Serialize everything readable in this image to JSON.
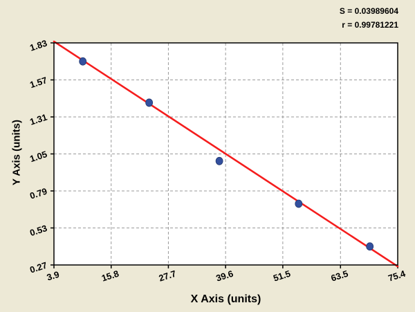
{
  "stats": {
    "s_label": "S = 0.03989604",
    "r_label": "r = 0.99781221"
  },
  "chart_data": {
    "type": "scatter",
    "title": "",
    "xlabel": "X Axis (units)",
    "ylabel": "Y Axis (units)",
    "xlim": [
      3.9,
      75.4
    ],
    "ylim": [
      0.27,
      1.83
    ],
    "x_ticks": [
      "3.9",
      "15.8",
      "27.7",
      "39.6",
      "51.5",
      "63.5",
      "75.4"
    ],
    "y_ticks": [
      "0.27",
      "0.53",
      "0.79",
      "1.05",
      "1.31",
      "1.57",
      "1.83"
    ],
    "grid": true,
    "legend": "none",
    "points": [
      {
        "x": 9.9,
        "y": 1.7
      },
      {
        "x": 23.7,
        "y": 1.41
      },
      {
        "x": 38.3,
        "y": 1.0
      },
      {
        "x": 54.8,
        "y": 0.7
      },
      {
        "x": 69.6,
        "y": 0.4
      }
    ],
    "fit_line": {
      "x1": 3.9,
      "y1": 1.84,
      "x2": 75.4,
      "y2": 0.26
    },
    "colors": {
      "background": "#ede9d6",
      "plot_bg": "#ffffff",
      "grid": "#9a9a9a",
      "line": "#f51d1d",
      "point": "#33509f",
      "axis": "#000000"
    }
  }
}
